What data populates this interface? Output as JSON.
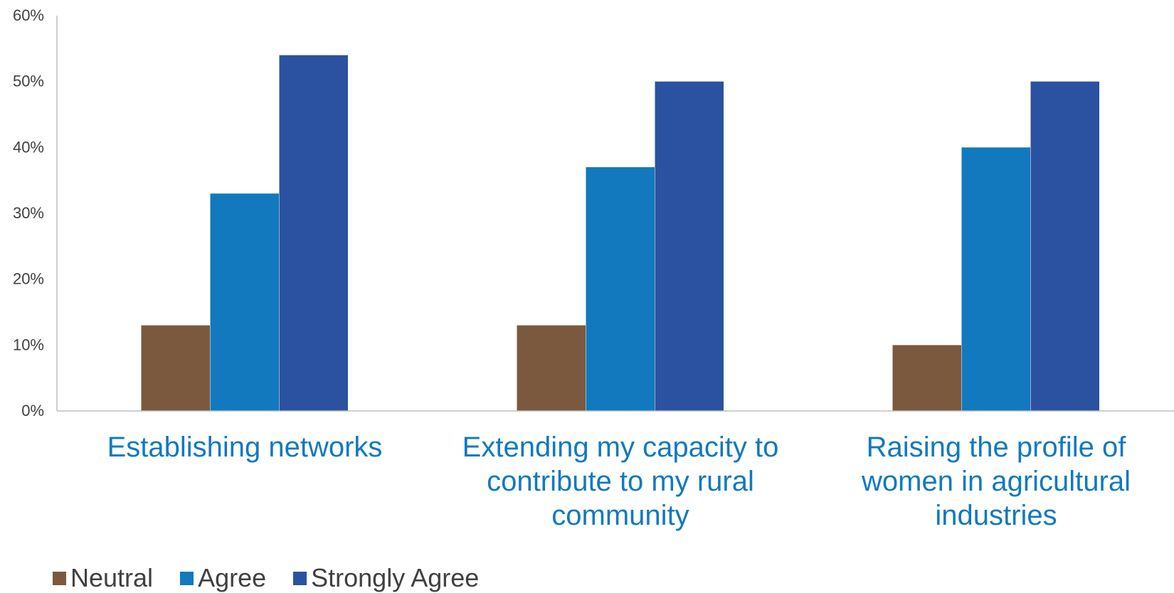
{
  "chart_data": {
    "type": "bar",
    "title": "",
    "xlabel": "",
    "ylabel": "",
    "ylim": [
      0,
      60
    ],
    "y_tick_labels": [
      "0%",
      "10%",
      "20%",
      "30%",
      "40%",
      "50%",
      "60%"
    ],
    "y_ticks": [
      0,
      10,
      20,
      30,
      40,
      50,
      60
    ],
    "grid": false,
    "legend_position": "bottom-left",
    "categories": [
      "Establishing networks",
      "Extending my capacity to contribute to my rural community",
      "Raising the profile of women in agricultural industries"
    ],
    "series": [
      {
        "name": "Neutral",
        "color": "#7b593f",
        "values": [
          13,
          13,
          10
        ]
      },
      {
        "name": "Agree",
        "color": "#1279be",
        "values": [
          33,
          37,
          40
        ]
      },
      {
        "name": "Strongly Agree",
        "color": "#2b52a0",
        "values": [
          54,
          50,
          50
        ]
      }
    ]
  }
}
